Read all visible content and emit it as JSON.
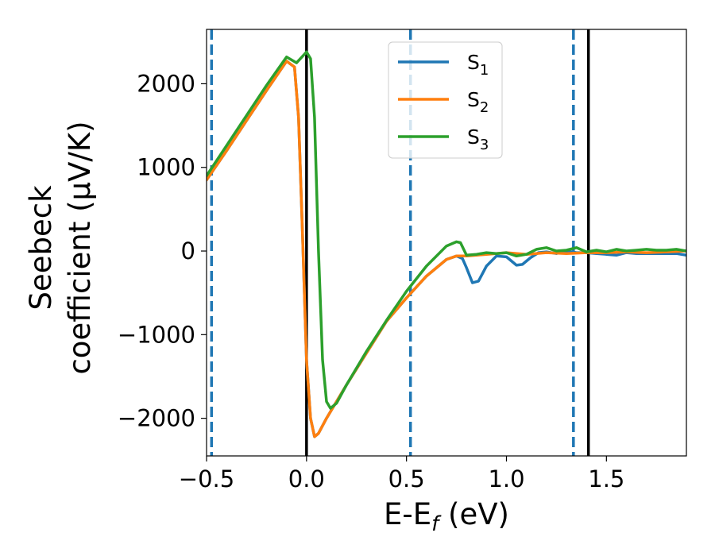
{
  "chart_data": {
    "type": "line",
    "xlabel": {
      "main": "E-E",
      "sub": "f",
      "unit": " (eV)"
    },
    "ylabel": {
      "line1": "Seebeck",
      "line2": "coefficient  (μV/K)"
    },
    "xlim": [
      -0.5,
      1.9
    ],
    "ylim": [
      -2450,
      2650
    ],
    "x_ticks": [
      -0.5,
      0.0,
      0.5,
      1.0,
      1.5
    ],
    "x_tick_labels": [
      "−0.5",
      "0.0",
      "0.5",
      "1.0",
      "1.5"
    ],
    "y_ticks": [
      -2000,
      -1000,
      0,
      1000,
      2000
    ],
    "y_tick_labels": [
      "−2000",
      "−1000",
      "0",
      "1000",
      "2000"
    ],
    "grid": false,
    "legend_position": "top-center",
    "vertical_lines": [
      {
        "x": -0.475,
        "style": "dashed",
        "color": "#1f77b4"
      },
      {
        "x": 0.0,
        "style": "solid",
        "color": "#000000"
      },
      {
        "x": 0.52,
        "style": "dashed",
        "color": "#1f77b4"
      },
      {
        "x": 1.335,
        "style": "dashed",
        "color": "#1f77b4"
      },
      {
        "x": 1.41,
        "style": "solid",
        "color": "#000000"
      }
    ],
    "series": [
      {
        "name": "S",
        "subscript": "1",
        "color": "#1f77b4",
        "x": [
          -0.5,
          -0.4,
          -0.3,
          -0.2,
          -0.1,
          -0.06,
          -0.04,
          -0.02,
          0.0,
          0.02,
          0.04,
          0.06,
          0.1,
          0.2,
          0.3,
          0.4,
          0.5,
          0.6,
          0.7,
          0.75,
          0.78,
          0.8,
          0.83,
          0.86,
          0.9,
          0.95,
          1.0,
          1.05,
          1.08,
          1.12,
          1.16,
          1.2,
          1.25,
          1.3,
          1.35,
          1.4,
          1.45,
          1.5,
          1.55,
          1.6,
          1.65,
          1.7,
          1.75,
          1.8,
          1.85,
          1.9
        ],
        "y": [
          850,
          1200,
          1560,
          1920,
          2270,
          2200,
          1600,
          200,
          -1300,
          -2000,
          -2220,
          -2180,
          -2000,
          -1600,
          -1220,
          -840,
          -560,
          -300,
          -100,
          -60,
          -90,
          -200,
          -380,
          -360,
          -180,
          -60,
          -70,
          -170,
          -160,
          -80,
          -20,
          -10,
          -30,
          0,
          -20,
          -20,
          -30,
          -40,
          -50,
          -20,
          -30,
          -30,
          -30,
          -30,
          -30,
          -50
        ]
      },
      {
        "name": "S",
        "subscript": "2",
        "color": "#ff7f0e",
        "x": [
          -0.5,
          -0.4,
          -0.3,
          -0.2,
          -0.1,
          -0.06,
          -0.04,
          -0.02,
          0.0,
          0.02,
          0.04,
          0.06,
          0.1,
          0.2,
          0.3,
          0.4,
          0.5,
          0.6,
          0.7,
          0.75,
          0.8,
          0.9,
          1.0,
          1.1,
          1.2,
          1.3,
          1.4,
          1.5,
          1.6,
          1.7,
          1.8,
          1.9
        ],
        "y": [
          850,
          1200,
          1560,
          1920,
          2270,
          2200,
          1600,
          200,
          -1300,
          -2000,
          -2220,
          -2180,
          -2000,
          -1600,
          -1220,
          -840,
          -560,
          -300,
          -100,
          -60,
          -60,
          -40,
          -20,
          -40,
          -20,
          -30,
          -20,
          -20,
          -10,
          -20,
          -10,
          0
        ]
      },
      {
        "name": "S",
        "subscript": "3",
        "color": "#2ca02c",
        "x": [
          -0.5,
          -0.4,
          -0.3,
          -0.2,
          -0.1,
          -0.05,
          0.0,
          0.02,
          0.04,
          0.06,
          0.08,
          0.1,
          0.12,
          0.15,
          0.2,
          0.3,
          0.4,
          0.5,
          0.6,
          0.7,
          0.75,
          0.77,
          0.8,
          0.85,
          0.9,
          0.95,
          1.0,
          1.05,
          1.1,
          1.15,
          1.2,
          1.25,
          1.3,
          1.35,
          1.4,
          1.45,
          1.5,
          1.55,
          1.6,
          1.65,
          1.7,
          1.75,
          1.8,
          1.85,
          1.9
        ],
        "y": [
          900,
          1260,
          1620,
          1980,
          2320,
          2250,
          2380,
          2300,
          1600,
          0,
          -1300,
          -1800,
          -1880,
          -1820,
          -1600,
          -1200,
          -830,
          -480,
          -180,
          60,
          110,
          100,
          -50,
          -40,
          -20,
          -30,
          -20,
          -60,
          -40,
          20,
          40,
          0,
          10,
          40,
          -10,
          10,
          -10,
          20,
          0,
          10,
          20,
          10,
          10,
          20,
          0
        ]
      }
    ]
  }
}
